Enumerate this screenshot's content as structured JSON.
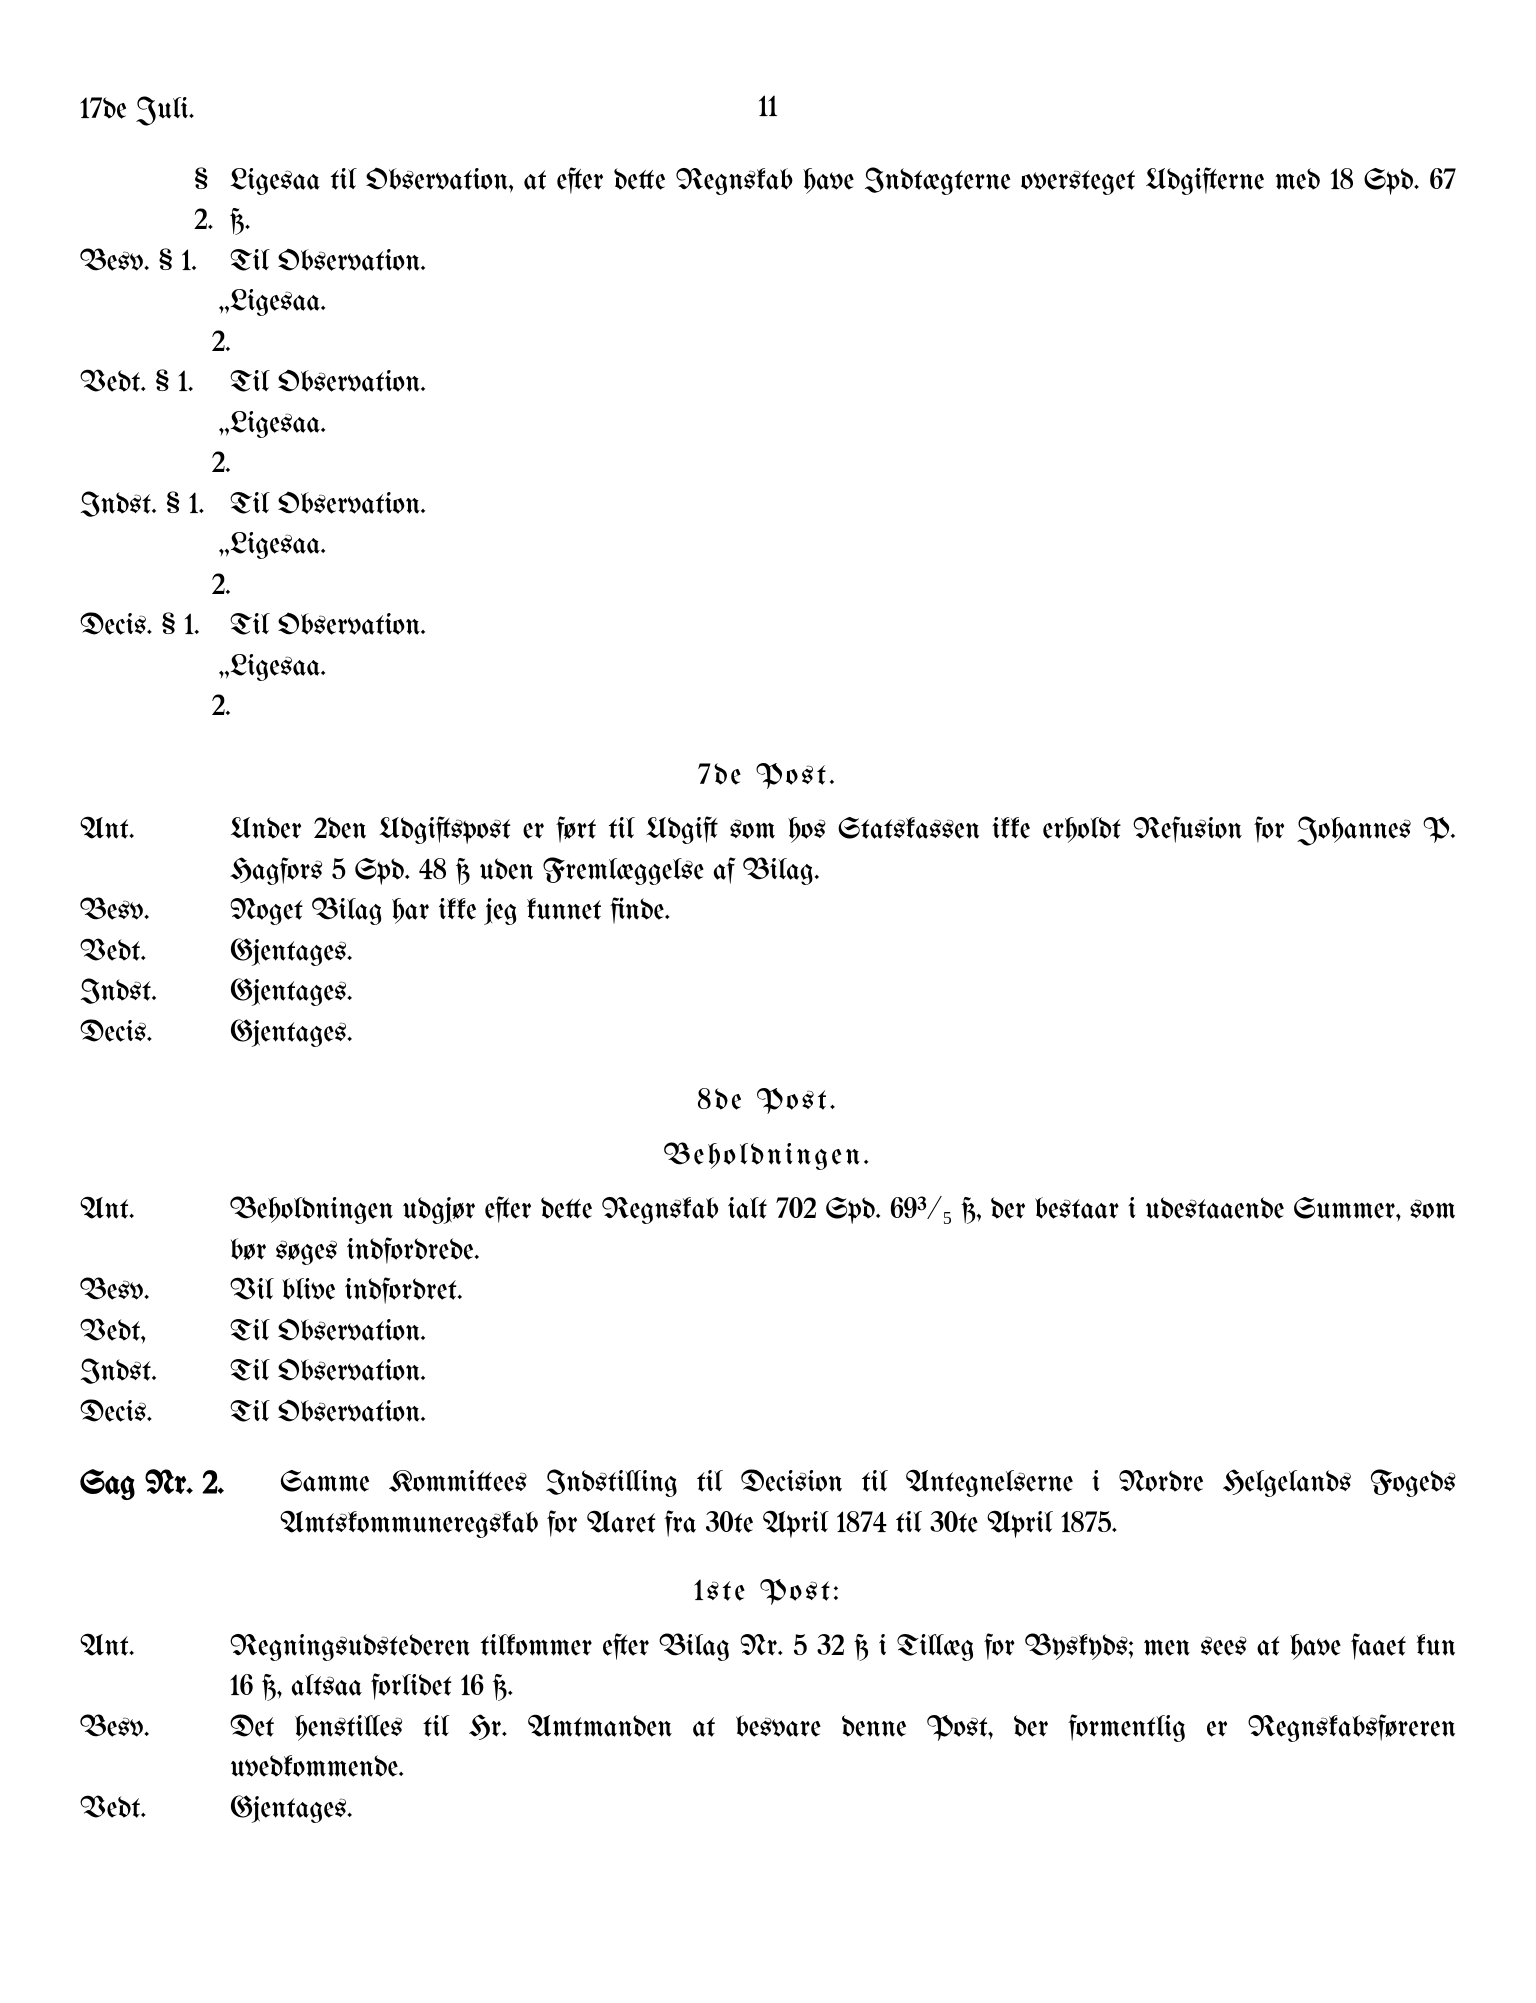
{
  "header": {
    "date": "17de Juli.",
    "page_number": "11"
  },
  "sec2": {
    "label": "§ 2.",
    "text": "Ligesaa til Observation, at efter dette Regnskab have Indtægterne oversteget Udgifterne med 18 Spd. 67 ß."
  },
  "responses1": [
    {
      "label": "Besv. § 1.",
      "text": "Til Observation."
    },
    {
      "label": "„ 2.",
      "text": "Ligesaa.",
      "ditto": true
    },
    {
      "label": "Vedt. § 1.",
      "text": "Til Observation."
    },
    {
      "label": "„ 2.",
      "text": "Ligesaa.",
      "ditto": true
    },
    {
      "label": "Indst. § 1.",
      "text": "Til Observation."
    },
    {
      "label": "„ 2.",
      "text": "Ligesaa.",
      "ditto": true
    },
    {
      "label": "Decis. § 1.",
      "text": "Til Observation."
    },
    {
      "label": "„ 2.",
      "text": "Ligesaa.",
      "ditto": true
    }
  ],
  "post7": {
    "title": "7de Post.",
    "ant_label": "Ant.",
    "ant_text": "Under 2den Udgiftspost er ført til Udgift som hos Statskassen ikke erholdt Refusion for Johannes P. Hagfors 5 Spd. 48 ß uden Fremlæggelse af Bilag.",
    "rows": [
      {
        "label": "Besv.",
        "text": "Noget Bilag har ikke jeg kunnet finde."
      },
      {
        "label": "Vedt.",
        "text": "Gjentages."
      },
      {
        "label": "Indst.",
        "text": "Gjentages."
      },
      {
        "label": "Decis.",
        "text": "Gjentages."
      }
    ]
  },
  "post8": {
    "title": "8de Post.",
    "subtitle": "Beholdningen.",
    "ant_label": "Ant.",
    "ant_text": "Beholdningen udgjør efter dette Regnskab ialt 702 Spd. 69³/₅ ß, der bestaar i udestaaende Summer, som bør søges indfordrede.",
    "rows": [
      {
        "label": "Besv.",
        "text": "Vil blive indfordret."
      },
      {
        "label": "Vedt,",
        "text": "Til Observation."
      },
      {
        "label": "Indst.",
        "text": "Til Observation."
      },
      {
        "label": "Decis.",
        "text": "Til Observation."
      }
    ]
  },
  "sag2": {
    "label": "Sag Nr. 2.",
    "text": "Samme Kommittees Indstilling til Decision til Antegnelserne i Nordre Helgelands Fogeds Amtskommuneregskab for Aaret fra 30te April 1874 til 30te April 1875."
  },
  "post1": {
    "title": "1ste Post:",
    "ant_label": "Ant.",
    "ant_text": "Regningsudstederen tilkommer efter Bilag Nr. 5 32 ß i Tillæg for Byskyds; men sees at have faaet kun 16 ß, altsaa forlidet 16 ß.",
    "rows": [
      {
        "label": "Besv.",
        "text": "Det henstilles til Hr. Amtmanden at besvare denne Post, der formentlig er Regnskabsføreren uvedkommende."
      },
      {
        "label": "Vedt.",
        "text": "Gjentages."
      }
    ]
  }
}
